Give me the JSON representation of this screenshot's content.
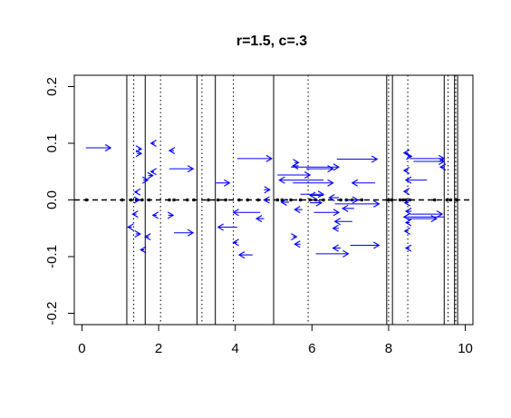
{
  "chart_data": {
    "type": "scatter",
    "title": "r=1.5, c=.3",
    "xlabel": "",
    "ylabel": "",
    "xlim": [
      -0.2,
      10.2
    ],
    "ylim": [
      -0.22,
      0.22
    ],
    "x_ticks": [
      "0",
      "2",
      "4",
      "6",
      "8",
      "10"
    ],
    "x_tick_values": [
      0,
      2,
      4,
      6,
      8,
      10
    ],
    "y_ticks": [
      "-0.2",
      "-0.1",
      "0.0",
      "0.1",
      "0.2"
    ],
    "y_tick_values": [
      -0.2,
      -0.1,
      0.0,
      0.1,
      0.2
    ],
    "grid": false,
    "colors": {
      "arrows": "#0000ff",
      "lines": "#000000"
    },
    "solid_lines_x": [
      1.17,
      1.65,
      3.0,
      3.48,
      5.0,
      7.95,
      8.1,
      9.45,
      9.72,
      9.8
    ],
    "dotted_lines_x": [
      1.35,
      2.05,
      3.13,
      3.95,
      5.9,
      8.0,
      8.5,
      9.55,
      9.75
    ],
    "zero_line_y": 0.0,
    "points_on_axis_x": [
      0.12,
      1.05,
      1.28,
      1.42,
      1.57,
      1.75,
      2.28,
      2.4,
      2.75,
      2.92,
      3.3,
      3.55,
      3.75,
      4.1,
      4.32,
      4.6,
      4.8,
      5.1,
      5.22,
      5.45,
      5.7,
      5.95,
      6.1,
      6.3,
      6.75,
      6.9,
      7.05,
      7.3,
      8.0,
      8.08,
      8.3,
      8.38,
      8.45,
      8.55,
      9.2,
      9.52,
      9.62,
      9.78
    ],
    "arrows": [
      {
        "x0": 0.1,
        "x1": 0.75,
        "y": 0.092
      },
      {
        "x0": 1.47,
        "x1": 1.55,
        "y": 0.09
      },
      {
        "x0": 1.43,
        "x1": 1.55,
        "y": 0.082
      },
      {
        "x0": 1.9,
        "x1": 1.8,
        "y": 0.1
      },
      {
        "x0": 2.4,
        "x1": 2.28,
        "y": 0.087
      },
      {
        "x0": 2.28,
        "x1": 2.9,
        "y": 0.055
      },
      {
        "x0": 1.88,
        "x1": 1.8,
        "y": 0.05
      },
      {
        "x0": 1.73,
        "x1": 1.85,
        "y": 0.043
      },
      {
        "x0": 1.6,
        "x1": 1.72,
        "y": 0.035
      },
      {
        "x0": 1.45,
        "x1": 1.38,
        "y": 0.014
      },
      {
        "x0": 1.4,
        "x1": 1.5,
        "y": 0.0
      },
      {
        "x0": 1.42,
        "x1": 1.32,
        "y": -0.025
      },
      {
        "x0": 1.95,
        "x1": 1.85,
        "y": -0.027
      },
      {
        "x0": 2.25,
        "x1": 2.38,
        "y": -0.027
      },
      {
        "x0": 1.3,
        "x1": 1.2,
        "y": -0.048
      },
      {
        "x0": 1.4,
        "x1": 1.52,
        "y": -0.06
      },
      {
        "x0": 1.75,
        "x1": 1.65,
        "y": -0.065
      },
      {
        "x0": 2.4,
        "x1": 2.9,
        "y": -0.058
      },
      {
        "x0": 1.62,
        "x1": 1.53,
        "y": -0.088
      },
      {
        "x0": 3.5,
        "x1": 3.85,
        "y": 0.03
      },
      {
        "x0": 4.05,
        "x1": 4.95,
        "y": 0.073
      },
      {
        "x0": 4.75,
        "x1": 4.9,
        "y": 0.018
      },
      {
        "x0": 4.9,
        "x1": 4.75,
        "y": 0.0
      },
      {
        "x0": 4.65,
        "x1": 3.95,
        "y": -0.022
      },
      {
        "x0": 4.75,
        "x1": 4.55,
        "y": -0.033
      },
      {
        "x0": 4.05,
        "x1": 3.55,
        "y": -0.048
      },
      {
        "x0": 4.05,
        "x1": 3.95,
        "y": -0.075
      },
      {
        "x0": 4.45,
        "x1": 4.1,
        "y": -0.097
      },
      {
        "x0": 5.55,
        "x1": 5.65,
        "y": 0.066
      },
      {
        "x0": 5.65,
        "x1": 5.5,
        "y": 0.06
      },
      {
        "x0": 5.45,
        "x1": 6.7,
        "y": 0.058
      },
      {
        "x0": 5.85,
        "x1": 6.55,
        "y": 0.055
      },
      {
        "x0": 5.1,
        "x1": 5.95,
        "y": 0.044
      },
      {
        "x0": 6.3,
        "x1": 5.15,
        "y": 0.035
      },
      {
        "x0": 5.5,
        "x1": 6.55,
        "y": 0.03
      },
      {
        "x0": 6.65,
        "x1": 7.7,
        "y": 0.072
      },
      {
        "x0": 7.65,
        "x1": 7.05,
        "y": 0.03
      },
      {
        "x0": 5.7,
        "x1": 6.3,
        "y": 0.01
      },
      {
        "x0": 6.3,
        "x1": 5.95,
        "y": 0.008
      },
      {
        "x0": 6.7,
        "x1": 6.45,
        "y": 0.004
      },
      {
        "x0": 5.4,
        "x1": 5.2,
        "y": -0.004
      },
      {
        "x0": 5.95,
        "x1": 6.25,
        "y": -0.005
      },
      {
        "x0": 6.85,
        "x1": 7.2,
        "y": 0.0
      },
      {
        "x0": 6.6,
        "x1": 7.75,
        "y": -0.007
      },
      {
        "x0": 7.1,
        "x1": 6.8,
        "y": -0.015
      },
      {
        "x0": 5.75,
        "x1": 5.55,
        "y": -0.017
      },
      {
        "x0": 6.05,
        "x1": 6.7,
        "y": -0.022
      },
      {
        "x0": 7.05,
        "x1": 6.6,
        "y": -0.038
      },
      {
        "x0": 6.7,
        "x1": 6.55,
        "y": -0.05
      },
      {
        "x0": 5.5,
        "x1": 5.6,
        "y": -0.065
      },
      {
        "x0": 5.7,
        "x1": 5.55,
        "y": -0.078
      },
      {
        "x0": 7.0,
        "x1": 7.75,
        "y": -0.08
      },
      {
        "x0": 6.75,
        "x1": 6.55,
        "y": -0.085
      },
      {
        "x0": 6.1,
        "x1": 6.95,
        "y": -0.095
      },
      {
        "x0": 8.5,
        "x1": 8.4,
        "y": 0.083
      },
      {
        "x0": 8.5,
        "x1": 8.6,
        "y": 0.077
      },
      {
        "x0": 8.55,
        "x1": 9.45,
        "y": 0.073
      },
      {
        "x0": 8.65,
        "x1": 9.45,
        "y": 0.068
      },
      {
        "x0": 9.45,
        "x1": 9.35,
        "y": 0.058
      },
      {
        "x0": 8.5,
        "x1": 8.4,
        "y": 0.052
      },
      {
        "x0": 9.0,
        "x1": 8.45,
        "y": 0.035
      },
      {
        "x0": 8.5,
        "x1": 8.4,
        "y": 0.015
      },
      {
        "x0": 8.52,
        "x1": 8.42,
        "y": -0.005
      },
      {
        "x0": 8.6,
        "x1": 8.45,
        "y": -0.02
      },
      {
        "x0": 8.6,
        "x1": 9.4,
        "y": -0.025
      },
      {
        "x0": 9.45,
        "x1": 8.4,
        "y": -0.03
      },
      {
        "x0": 8.5,
        "x1": 9.25,
        "y": -0.033
      },
      {
        "x0": 8.55,
        "x1": 8.45,
        "y": -0.04
      },
      {
        "x0": 8.5,
        "x1": 8.42,
        "y": -0.055
      },
      {
        "x0": 8.55,
        "x1": 8.45,
        "y": -0.085
      }
    ]
  }
}
